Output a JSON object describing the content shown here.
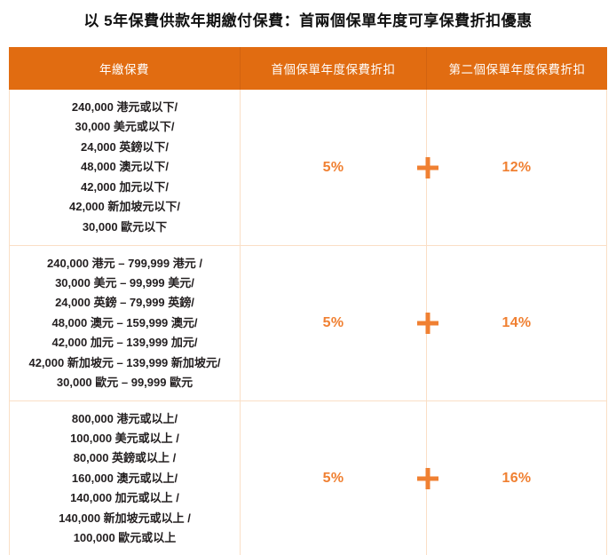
{
  "title": "以 5年保費供款年期繳付保費：首兩個保單年度可享保費折扣優惠",
  "colors": {
    "header_bg": "#e16c11",
    "accent_orange": "#f08032",
    "grid_border": "#fadfc6",
    "body_text": "#231f20",
    "header_text": "#ffffff"
  },
  "icons": {
    "plus": "+"
  },
  "table": {
    "headers": [
      "年繳保費",
      "首個保單年度保費折扣",
      "第二個保單年度保費折扣"
    ],
    "rows": [
      {
        "lines": [
          "240,000 港元或以下/",
          "30,000 美元或以下/",
          "24,000 英鎊以下/",
          "48,000 澳元以下/",
          "42,000 加元以下/",
          "42,000 新加坡元以下/",
          "30,000 歐元以下"
        ],
        "first_year_discount": "5%",
        "second_year_discount": "12%"
      },
      {
        "lines": [
          "240,000 港元 – 799,999 港元 /",
          "30,000 美元 – 99,999 美元/",
          "24,000 英鎊 – 79,999 英鎊/",
          "48,000 澳元 – 159,999 澳元/",
          "42,000 加元 – 139,999 加元/",
          "42,000 新加坡元 – 139,999 新加坡元/",
          "30,000 歐元 – 99,999 歐元"
        ],
        "first_year_discount": "5%",
        "second_year_discount": "14%"
      },
      {
        "lines": [
          "800,000 港元或以上/",
          "100,000 美元或以上 /",
          "80,000 英鎊或以上 /",
          "160,000 澳元或以上/",
          "140,000 加元或以上 /",
          "140,000 新加坡元或以上 /",
          "100,000 歐元或以上"
        ],
        "first_year_discount": "5%",
        "second_year_discount": "16%"
      }
    ]
  }
}
